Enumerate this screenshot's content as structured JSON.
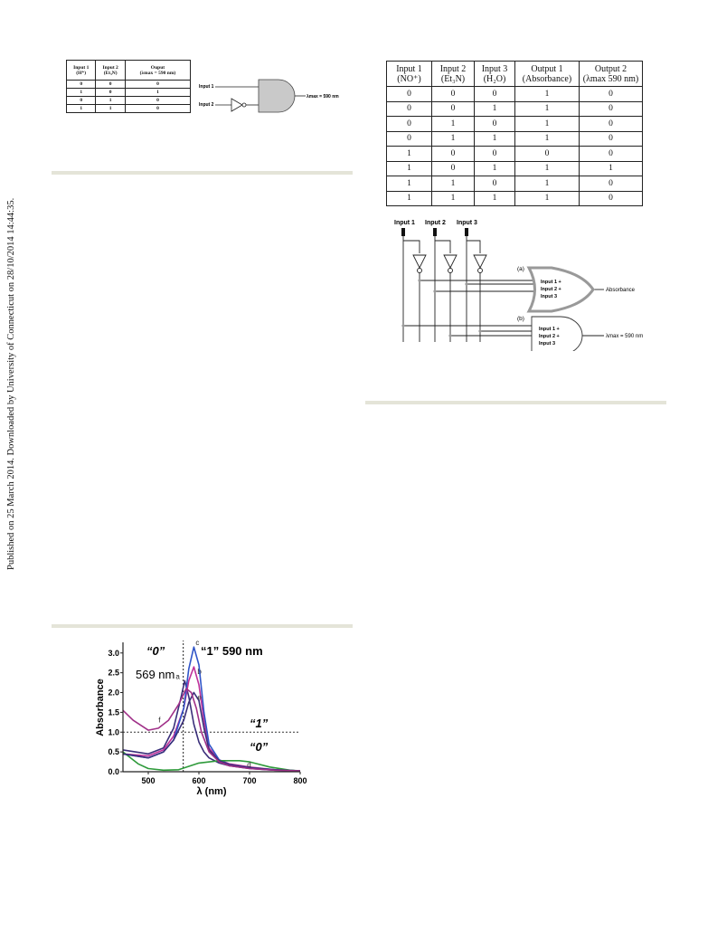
{
  "side_note": "Published on 25 March 2014. Downloaded by University of Connecticut on 28/10/2014 14:44:35.",
  "table1": {
    "headers": [
      [
        "Input 1",
        "(H⁺)"
      ],
      [
        "Input 2",
        "(Et₃N)"
      ],
      [
        "Ouput",
        "(λmax = 590 nm)"
      ]
    ],
    "rows": [
      [
        "0",
        "0",
        "0"
      ],
      [
        "1",
        "0",
        "1"
      ],
      [
        "0",
        "1",
        "0"
      ],
      [
        "1",
        "1",
        "0"
      ]
    ]
  },
  "gate1": {
    "input1": "Input 1",
    "input2": "Input 2",
    "output": "λmax = 590 nm"
  },
  "table2": {
    "headers": [
      [
        "Input 1",
        "(NO⁺)"
      ],
      [
        "Input 2",
        "(Et₃N)"
      ],
      [
        "Input 3",
        "(H₂O)"
      ],
      [
        "Output 1",
        "(Absorbance)"
      ],
      [
        "Output 2",
        "(λmax 590 nm)"
      ]
    ],
    "rows": [
      [
        "0",
        "0",
        "0",
        "1",
        "0"
      ],
      [
        "0",
        "0",
        "1",
        "1",
        "0"
      ],
      [
        "0",
        "1",
        "0",
        "1",
        "0"
      ],
      [
        "0",
        "1",
        "1",
        "1",
        "0"
      ],
      [
        "1",
        "0",
        "0",
        "0",
        "0"
      ],
      [
        "1",
        "0",
        "1",
        "1",
        "1"
      ],
      [
        "1",
        "1",
        "0",
        "1",
        "0"
      ],
      [
        "1",
        "1",
        "1",
        "1",
        "0"
      ]
    ]
  },
  "circuit": {
    "inputs": [
      "Input 1",
      "Input 2",
      "Input 3"
    ],
    "gate_a_label": "(a)",
    "gate_b_label": "(b)",
    "gate_a_inputs": [
      "Input 1 +",
      "Input 2 +",
      "Input 3"
    ],
    "gate_b_inputs": [
      "Input 1 +",
      "Input 2 +",
      "Input 3"
    ],
    "output_a": "Absorbance",
    "output_b": "λmax = 590 nm"
  },
  "chart_data": {
    "type": "line",
    "xlabel": "λ (nm)",
    "ylabel": "Absorbance",
    "xlim": [
      450,
      800
    ],
    "ylim": [
      0,
      3.2
    ],
    "x_ticks": [
      "500",
      "600",
      "700",
      "800"
    ],
    "y_ticks": [
      "0.0",
      "0.5",
      "1.0",
      "1.5",
      "2.0",
      "2.5",
      "3.0"
    ],
    "annotations": {
      "zero_top": "“0”",
      "one_top": "“1” 590 nm",
      "nm569": "569 nm",
      "one_right": "“1”",
      "zero_right": "“0”"
    },
    "threshold": 1.0,
    "marker_x": 569,
    "series": [
      {
        "name": "a",
        "color": "#3a2f7a",
        "x": [
          450,
          500,
          530,
          550,
          565,
          572,
          580,
          590,
          600,
          610,
          620,
          640,
          660,
          700,
          750,
          800
        ],
        "y": [
          0.55,
          0.45,
          0.6,
          1.1,
          1.9,
          2.3,
          1.9,
          1.2,
          0.75,
          0.5,
          0.35,
          0.22,
          0.15,
          0.08,
          0.04,
          0.02
        ]
      },
      {
        "name": "b",
        "color": "#c0309a",
        "x": [
          450,
          500,
          530,
          550,
          570,
          580,
          590,
          600,
          610,
          620,
          640,
          660,
          700,
          750,
          800
        ],
        "y": [
          0.45,
          0.4,
          0.55,
          0.9,
          1.6,
          2.3,
          2.65,
          2.2,
          1.3,
          0.6,
          0.3,
          0.2,
          0.12,
          0.05,
          0.02
        ]
      },
      {
        "name": "c",
        "color": "#3055c8",
        "x": [
          450,
          500,
          530,
          550,
          570,
          580,
          590,
          600,
          610,
          620,
          640,
          660,
          700,
          750,
          800
        ],
        "y": [
          0.45,
          0.35,
          0.5,
          0.8,
          1.6,
          2.6,
          3.15,
          2.7,
          1.5,
          0.7,
          0.3,
          0.18,
          0.1,
          0.05,
          0.02
        ]
      },
      {
        "name": "d",
        "color": "#2e9a3a",
        "x": [
          450,
          480,
          500,
          530,
          560,
          600,
          640,
          680,
          700,
          740,
          780,
          800
        ],
        "y": [
          0.5,
          0.2,
          0.08,
          0.04,
          0.05,
          0.22,
          0.28,
          0.28,
          0.25,
          0.12,
          0.04,
          0.02
        ]
      },
      {
        "name": "e",
        "color": "#3a2f7a",
        "x": [
          450,
          500,
          530,
          550,
          570,
          580,
          590,
          600,
          610,
          620,
          640,
          660,
          700,
          750,
          800
        ],
        "y": [
          0.45,
          0.35,
          0.5,
          0.8,
          1.3,
          1.75,
          2.0,
          1.8,
          1.1,
          0.55,
          0.28,
          0.18,
          0.1,
          0.05,
          0.02
        ]
      },
      {
        "name": "f",
        "color": "#a03088",
        "x": [
          450,
          470,
          500,
          520,
          540,
          560,
          575,
          585,
          595,
          605,
          620,
          640,
          660,
          700,
          750,
          800
        ],
        "y": [
          1.55,
          1.3,
          1.05,
          1.1,
          1.3,
          1.7,
          2.1,
          2.0,
          1.6,
          1.0,
          0.5,
          0.25,
          0.15,
          0.08,
          0.04,
          0.02
        ]
      }
    ]
  }
}
